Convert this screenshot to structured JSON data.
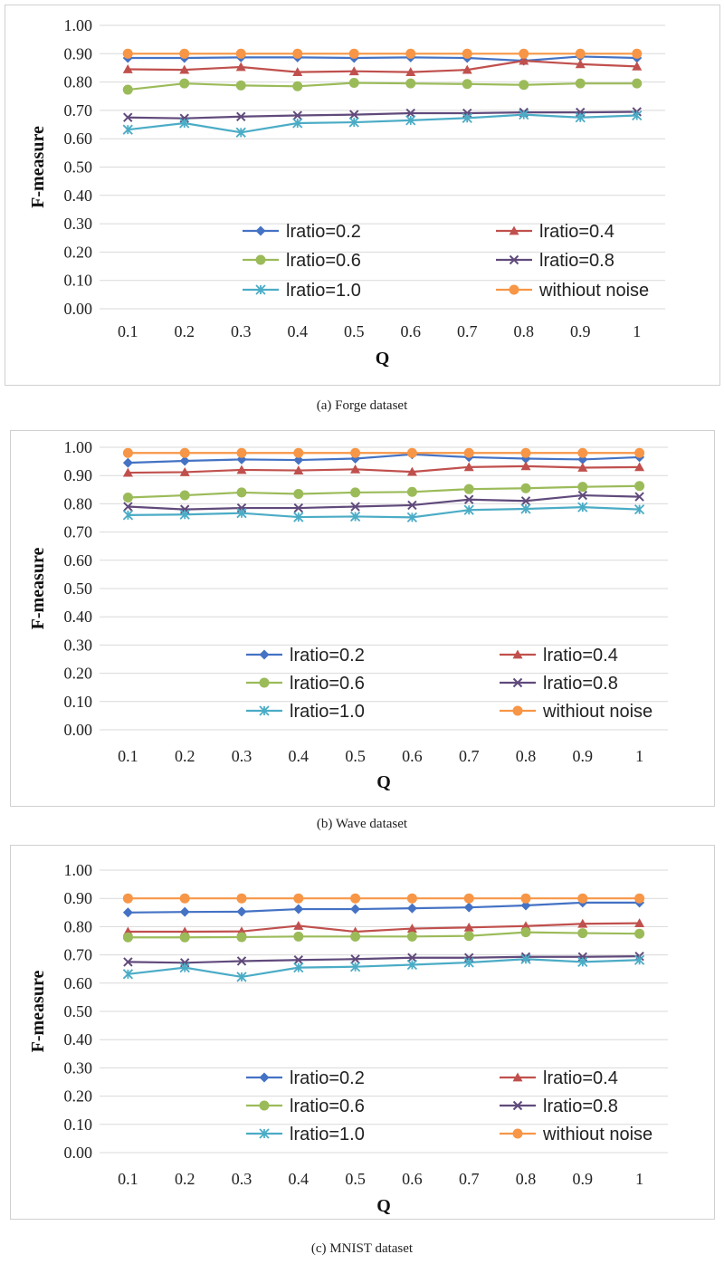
{
  "charts": [
    {
      "caption": "(a) Forge dataset",
      "chart_data": {
        "type": "line",
        "xlabel": "Q",
        "ylabel": "F-measure",
        "x": [
          "0.1",
          "0.2",
          "0.3",
          "0.4",
          "0.5",
          "0.6",
          "0.7",
          "0.8",
          "0.9",
          "1"
        ],
        "ylim": [
          0,
          1
        ],
        "yticks": [
          "0.00",
          "0.10",
          "0.20",
          "0.30",
          "0.40",
          "0.50",
          "0.60",
          "0.70",
          "0.80",
          "0.90",
          "1.00"
        ],
        "grid": "horizontal",
        "legend": "inside-bottom",
        "series": [
          {
            "name": "lratio=0.2",
            "color": "#4472C4",
            "marker": "diamond",
            "values": [
              0.885,
              0.885,
              0.887,
              0.887,
              0.885,
              0.887,
              0.885,
              0.875,
              0.89,
              0.885
            ]
          },
          {
            "name": "lratio=0.4",
            "color": "#C0504D",
            "marker": "triangle",
            "values": [
              0.845,
              0.843,
              0.853,
              0.835,
              0.838,
              0.835,
              0.843,
              0.875,
              0.863,
              0.855
            ]
          },
          {
            "name": "lratio=0.6",
            "color": "#9BBB59",
            "marker": "circle",
            "values": [
              0.773,
              0.795,
              0.788,
              0.785,
              0.797,
              0.795,
              0.793,
              0.79,
              0.795,
              0.795
            ]
          },
          {
            "name": "lratio=0.8",
            "color": "#604A7B",
            "marker": "x",
            "values": [
              0.675,
              0.672,
              0.678,
              0.682,
              0.685,
              0.69,
              0.69,
              0.693,
              0.693,
              0.695
            ]
          },
          {
            "name": "lratio=1.0",
            "color": "#4BACC6",
            "marker": "star",
            "values": [
              0.632,
              0.655,
              0.622,
              0.655,
              0.658,
              0.665,
              0.673,
              0.685,
              0.675,
              0.682
            ]
          },
          {
            "name": "withiout noise",
            "color": "#F79646",
            "marker": "circle",
            "values": [
              0.9,
              0.9,
              0.9,
              0.9,
              0.9,
              0.9,
              0.9,
              0.9,
              0.9,
              0.9
            ]
          }
        ]
      }
    },
    {
      "caption": "(b) Wave dataset",
      "chart_data": {
        "type": "line",
        "xlabel": "Q",
        "ylabel": "F-measure",
        "x": [
          "0.1",
          "0.2",
          "0.3",
          "0.4",
          "0.5",
          "0.6",
          "0.7",
          "0.8",
          "0.9",
          "1"
        ],
        "ylim": [
          0,
          1
        ],
        "yticks": [
          "0.00",
          "0.10",
          "0.20",
          "0.30",
          "0.40",
          "0.50",
          "0.60",
          "0.70",
          "0.80",
          "0.90",
          "1.00"
        ],
        "grid": "horizontal",
        "legend": "inside-bottom",
        "series": [
          {
            "name": "lratio=0.2",
            "color": "#4472C4",
            "marker": "diamond",
            "values": [
              0.945,
              0.952,
              0.957,
              0.955,
              0.96,
              0.975,
              0.965,
              0.96,
              0.957,
              0.965
            ]
          },
          {
            "name": "lratio=0.4",
            "color": "#C0504D",
            "marker": "triangle",
            "values": [
              0.91,
              0.912,
              0.92,
              0.918,
              0.922,
              0.913,
              0.93,
              0.933,
              0.928,
              0.93
            ]
          },
          {
            "name": "lratio=0.6",
            "color": "#9BBB59",
            "marker": "circle",
            "values": [
              0.822,
              0.83,
              0.84,
              0.835,
              0.84,
              0.842,
              0.852,
              0.855,
              0.86,
              0.863
            ]
          },
          {
            "name": "lratio=0.8",
            "color": "#604A7B",
            "marker": "x",
            "values": [
              0.79,
              0.78,
              0.785,
              0.785,
              0.79,
              0.795,
              0.815,
              0.81,
              0.83,
              0.825
            ]
          },
          {
            "name": "lratio=1.0",
            "color": "#4BACC6",
            "marker": "star",
            "values": [
              0.76,
              0.762,
              0.767,
              0.753,
              0.755,
              0.752,
              0.778,
              0.782,
              0.788,
              0.78
            ]
          },
          {
            "name": "withiout noise",
            "color": "#F79646",
            "marker": "circle",
            "values": [
              0.98,
              0.98,
              0.98,
              0.98,
              0.98,
              0.98,
              0.98,
              0.98,
              0.98,
              0.98
            ]
          }
        ]
      }
    },
    {
      "caption": "(c) MNIST dataset",
      "chart_data": {
        "type": "line",
        "xlabel": "Q",
        "ylabel": "F-measure",
        "x": [
          "0.1",
          "0.2",
          "0.3",
          "0.4",
          "0.5",
          "0.6",
          "0.7",
          "0.8",
          "0.9",
          "1"
        ],
        "ylim": [
          0,
          1
        ],
        "yticks": [
          "0.00",
          "0.10",
          "0.20",
          "0.30",
          "0.40",
          "0.50",
          "0.60",
          "0.70",
          "0.80",
          "0.90",
          "1.00"
        ],
        "grid": "horizontal",
        "legend": "inside-bottom",
        "series": [
          {
            "name": "lratio=0.2",
            "color": "#4472C4",
            "marker": "diamond",
            "values": [
              0.85,
              0.852,
              0.853,
              0.862,
              0.862,
              0.865,
              0.868,
              0.875,
              0.885,
              0.885
            ]
          },
          {
            "name": "lratio=0.4",
            "color": "#C0504D",
            "marker": "triangle",
            "values": [
              0.782,
              0.782,
              0.783,
              0.803,
              0.782,
              0.793,
              0.797,
              0.802,
              0.81,
              0.812
            ]
          },
          {
            "name": "lratio=0.6",
            "color": "#9BBB59",
            "marker": "circle",
            "values": [
              0.762,
              0.762,
              0.763,
              0.765,
              0.765,
              0.765,
              0.767,
              0.78,
              0.777,
              0.775
            ]
          },
          {
            "name": "lratio=0.8",
            "color": "#604A7B",
            "marker": "x",
            "values": [
              0.675,
              0.672,
              0.678,
              0.682,
              0.685,
              0.69,
              0.69,
              0.693,
              0.693,
              0.695
            ]
          },
          {
            "name": "lratio=1.0",
            "color": "#4BACC6",
            "marker": "star",
            "values": [
              0.632,
              0.655,
              0.622,
              0.655,
              0.658,
              0.665,
              0.673,
              0.685,
              0.675,
              0.682
            ]
          },
          {
            "name": "withiout noise",
            "color": "#F79646",
            "marker": "circle",
            "values": [
              0.9,
              0.9,
              0.9,
              0.9,
              0.9,
              0.9,
              0.9,
              0.9,
              0.9,
              0.9
            ]
          }
        ]
      }
    }
  ]
}
